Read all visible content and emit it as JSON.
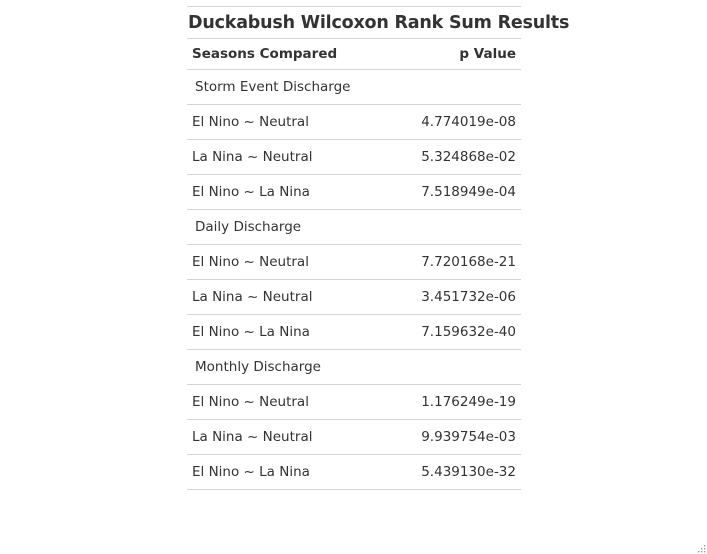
{
  "table": {
    "title": "Duckabush Wilcoxon Rank Sum Results",
    "columns": {
      "comparison": "Seasons Compared",
      "p_value": "p Value"
    },
    "groups": [
      {
        "label": "Storm Event Discharge",
        "rows": [
          {
            "comparison": "El Nino ~ Neutral",
            "p_value": "4.774019e-08"
          },
          {
            "comparison": "La Nina ~ Neutral",
            "p_value": "5.324868e-02"
          },
          {
            "comparison": "El Nino ~ La Nina",
            "p_value": "7.518949e-04"
          }
        ]
      },
      {
        "label": "Daily Discharge",
        "rows": [
          {
            "comparison": "El Nino ~ Neutral",
            "p_value": "7.720168e-21"
          },
          {
            "comparison": "La Nina ~ Neutral",
            "p_value": "3.451732e-06"
          },
          {
            "comparison": "El Nino ~ La Nina",
            "p_value": "7.159632e-40"
          }
        ]
      },
      {
        "label": "Monthly Discharge",
        "rows": [
          {
            "comparison": "El Nino ~ Neutral",
            "p_value": "1.176249e-19"
          },
          {
            "comparison": "La Nina ~ Neutral",
            "p_value": "9.939754e-03"
          },
          {
            "comparison": "El Nino ~ La Nina",
            "p_value": "5.439130e-32"
          }
        ]
      }
    ]
  },
  "icons": {
    "resize": "resize-grip-icon"
  }
}
